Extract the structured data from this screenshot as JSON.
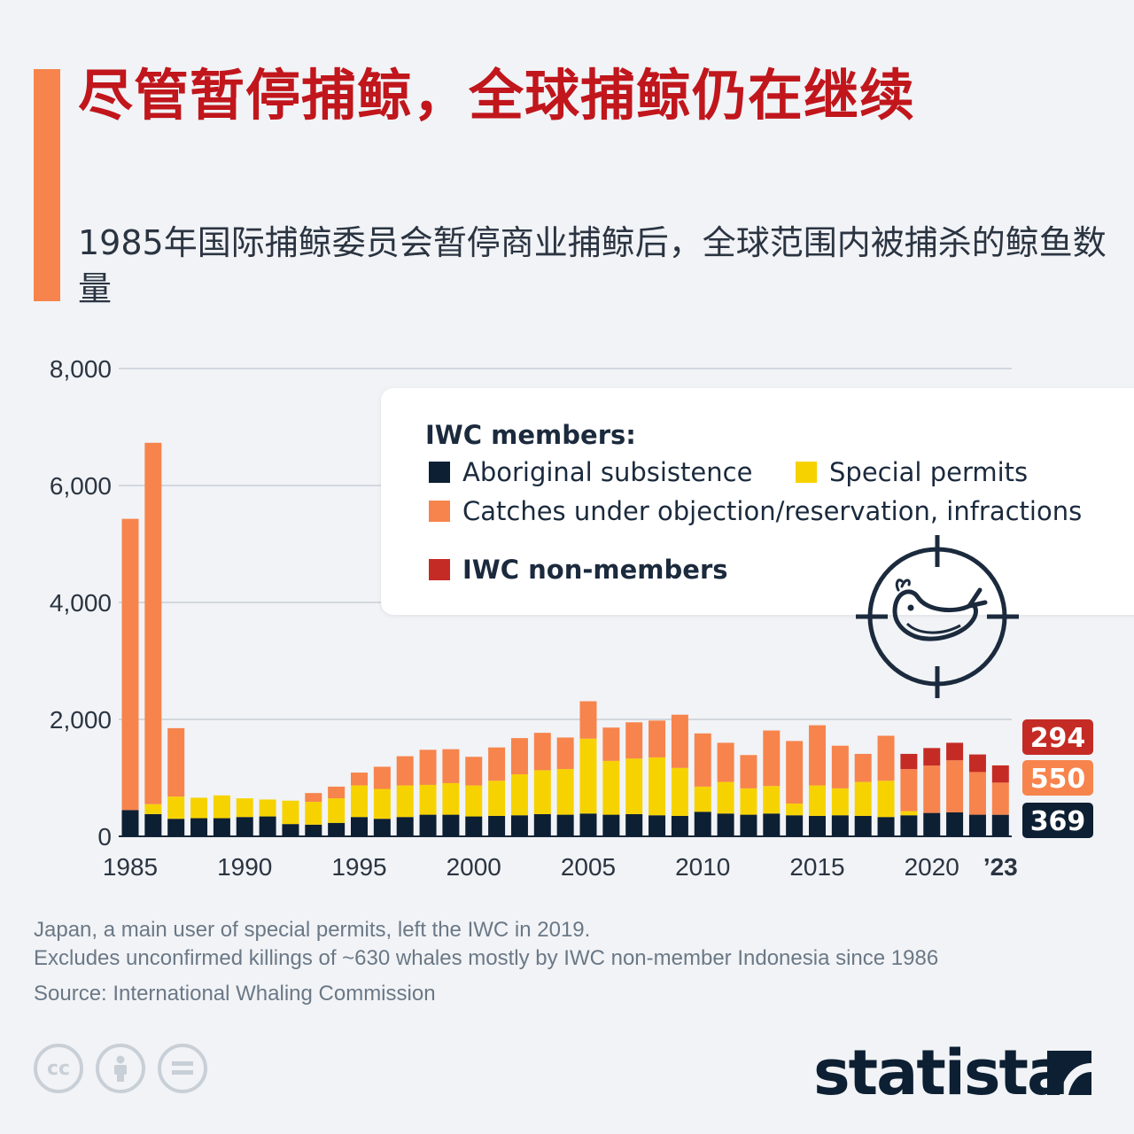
{
  "header": {
    "title": "尽管暂停捕鲸，全球捕鲸仍在继续",
    "subtitle": "1985年国际捕鲸委员会暂停商业捕鲸后，全球范围内被捕杀的鲸鱼数量"
  },
  "legend": {
    "heading": "IWC members:",
    "items": [
      {
        "label": "Aboriginal subsistence",
        "color": "#0d1f33"
      },
      {
        "label": "Special permits",
        "color": "#f6d300"
      },
      {
        "label": "Catches under objection/reservation, infractions",
        "color": "#f7844c"
      },
      {
        "label": "IWC non-members",
        "color": "#c52b25"
      }
    ]
  },
  "chart_data": {
    "type": "bar",
    "stacked": true,
    "x": [
      1985,
      1986,
      1987,
      1988,
      1989,
      1990,
      1991,
      1992,
      1993,
      1994,
      1995,
      1996,
      1997,
      1998,
      1999,
      2000,
      2001,
      2002,
      2003,
      2004,
      2005,
      2006,
      2007,
      2008,
      2009,
      2010,
      2011,
      2012,
      2013,
      2014,
      2015,
      2016,
      2017,
      2018,
      2019,
      2020,
      2021,
      2022,
      2023
    ],
    "x_tick_labels": [
      "1985",
      "1990",
      "1995",
      "2000",
      "2005",
      "2010",
      "2015",
      "2020",
      "’23"
    ],
    "y_tick_labels": [
      "0",
      "2,000",
      "4,000",
      "6,000",
      "8,000"
    ],
    "ylim": [
      0,
      8000
    ],
    "grid": true,
    "series": [
      {
        "name": "Aboriginal subsistence",
        "color": "#0d1f33",
        "values": [
          450,
          380,
          300,
          310,
          310,
          330,
          340,
          210,
          200,
          230,
          330,
          300,
          330,
          370,
          370,
          340,
          350,
          360,
          380,
          370,
          390,
          370,
          380,
          360,
          350,
          420,
          390,
          370,
          390,
          360,
          350,
          360,
          350,
          330,
          360,
          400,
          410,
          370,
          369
        ]
      },
      {
        "name": "Special permits",
        "color": "#f6d300",
        "values": [
          0,
          170,
          380,
          350,
          390,
          320,
          290,
          400,
          390,
          420,
          540,
          510,
          540,
          510,
          540,
          530,
          600,
          700,
          750,
          780,
          1280,
          920,
          950,
          990,
          820,
          430,
          540,
          450,
          470,
          200,
          520,
          460,
          580,
          620,
          70,
          0,
          0,
          0,
          0
        ]
      },
      {
        "name": "Catches under objection/reservation, infractions",
        "color": "#f7844c",
        "values": [
          4980,
          6180,
          1170,
          0,
          0,
          0,
          0,
          0,
          150,
          200,
          220,
          380,
          500,
          600,
          580,
          490,
          570,
          620,
          640,
          540,
          640,
          570,
          620,
          630,
          910,
          910,
          670,
          570,
          950,
          1070,
          1030,
          730,
          480,
          770,
          720,
          810,
          890,
          730,
          550
        ]
      },
      {
        "name": "IWC non-members",
        "color": "#c52b25",
        "values": [
          0,
          0,
          0,
          0,
          0,
          0,
          0,
          0,
          0,
          0,
          0,
          0,
          0,
          0,
          0,
          0,
          0,
          0,
          0,
          0,
          0,
          0,
          0,
          0,
          0,
          0,
          0,
          0,
          0,
          0,
          0,
          0,
          0,
          0,
          260,
          300,
          300,
          300,
          294
        ]
      }
    ],
    "value_labels": {
      "IWC non-members": "294",
      "Catches under objection/reservation, infractions": "550",
      "Aboriginal subsistence": "369"
    }
  },
  "footnotes": {
    "line1": "Japan, a main user of special permits, left the IWC in 2019.",
    "line2": "Excludes unconfirmed killings of ~630 whales mostly by IWC non-member Indonesia since 1986",
    "source": "Source: International Whaling Commission"
  },
  "branding": {
    "cc_icons": [
      "cc-icon",
      "by-person-icon",
      "nd-equals-icon"
    ],
    "cc_text": "cc",
    "logo_text": "statista"
  }
}
